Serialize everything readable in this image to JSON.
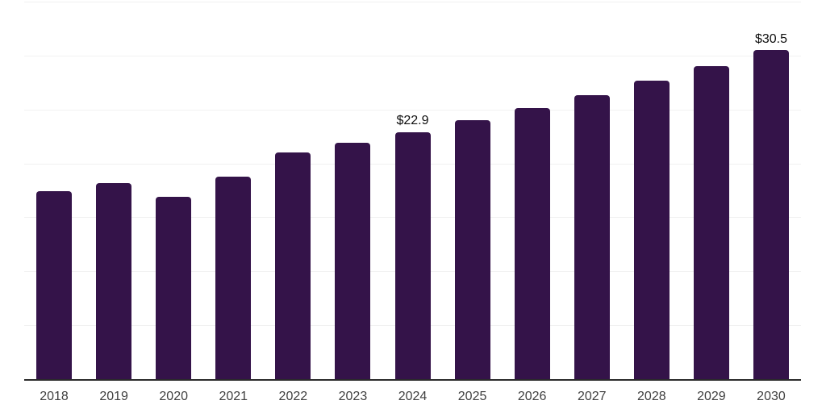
{
  "chart_data": {
    "type": "bar",
    "title": "",
    "xlabel": "",
    "ylabel": "",
    "categories": [
      "2018",
      "2019",
      "2020",
      "2021",
      "2022",
      "2023",
      "2024",
      "2025",
      "2026",
      "2027",
      "2028",
      "2029",
      "2030"
    ],
    "values": [
      17.4,
      18.2,
      16.9,
      18.8,
      21.0,
      21.9,
      22.9,
      24.0,
      25.1,
      26.3,
      27.7,
      29.0,
      30.5
    ],
    "data_labels": {
      "2024": "$22.9",
      "2030": "$30.5"
    },
    "ylim": [
      0,
      35
    ],
    "gridline_values": [
      5,
      10,
      15,
      20,
      25,
      30,
      35
    ],
    "grid": "horizontal-only",
    "legend": "none",
    "y_axis_labels_visible": false,
    "colors": {
      "bar-color": "#341349",
      "grid-color": "#f1f1f1",
      "axis-color": "#2b2b2b",
      "tick-color": "#404040",
      "label-color": "#0e0e0e",
      "background": "#ffffff"
    }
  }
}
